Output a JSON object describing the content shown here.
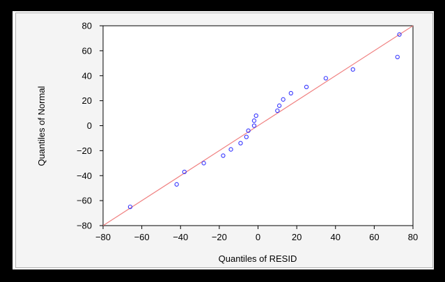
{
  "chart_data": {
    "type": "scatter",
    "title": "",
    "xlabel": "Quantiles of RESID",
    "ylabel": "Quantiles of Normal",
    "xlim": [
      -80,
      80
    ],
    "ylim": [
      -80,
      80
    ],
    "xticks": [
      -80,
      -60,
      -40,
      -20,
      0,
      20,
      40,
      60,
      80
    ],
    "yticks": [
      -80,
      -60,
      -40,
      -20,
      0,
      20,
      40,
      60,
      80
    ],
    "grid": false,
    "points": [
      {
        "x": -66,
        "y": -65
      },
      {
        "x": -42,
        "y": -47
      },
      {
        "x": -38,
        "y": -37
      },
      {
        "x": -28,
        "y": -30
      },
      {
        "x": -18,
        "y": -24
      },
      {
        "x": -14,
        "y": -19
      },
      {
        "x": -9,
        "y": -14
      },
      {
        "x": -6,
        "y": -9
      },
      {
        "x": -5,
        "y": -4
      },
      {
        "x": -2,
        "y": 0
      },
      {
        "x": -2,
        "y": 4
      },
      {
        "x": -1,
        "y": 8
      },
      {
        "x": 10,
        "y": 12
      },
      {
        "x": 11,
        "y": 16
      },
      {
        "x": 13,
        "y": 21
      },
      {
        "x": 17,
        "y": 26
      },
      {
        "x": 25,
        "y": 31
      },
      {
        "x": 35,
        "y": 38
      },
      {
        "x": 49,
        "y": 45
      },
      {
        "x": 72,
        "y": 55
      },
      {
        "x": 73,
        "y": 73
      }
    ],
    "reference_line": {
      "from": [
        -80,
        -80
      ],
      "to": [
        80,
        80
      ]
    },
    "colors": {
      "marker": "#3333ff",
      "line": "#f08080",
      "background": "#000000",
      "plot_area": "#ffffff",
      "panel": "#f4f4f4"
    }
  }
}
